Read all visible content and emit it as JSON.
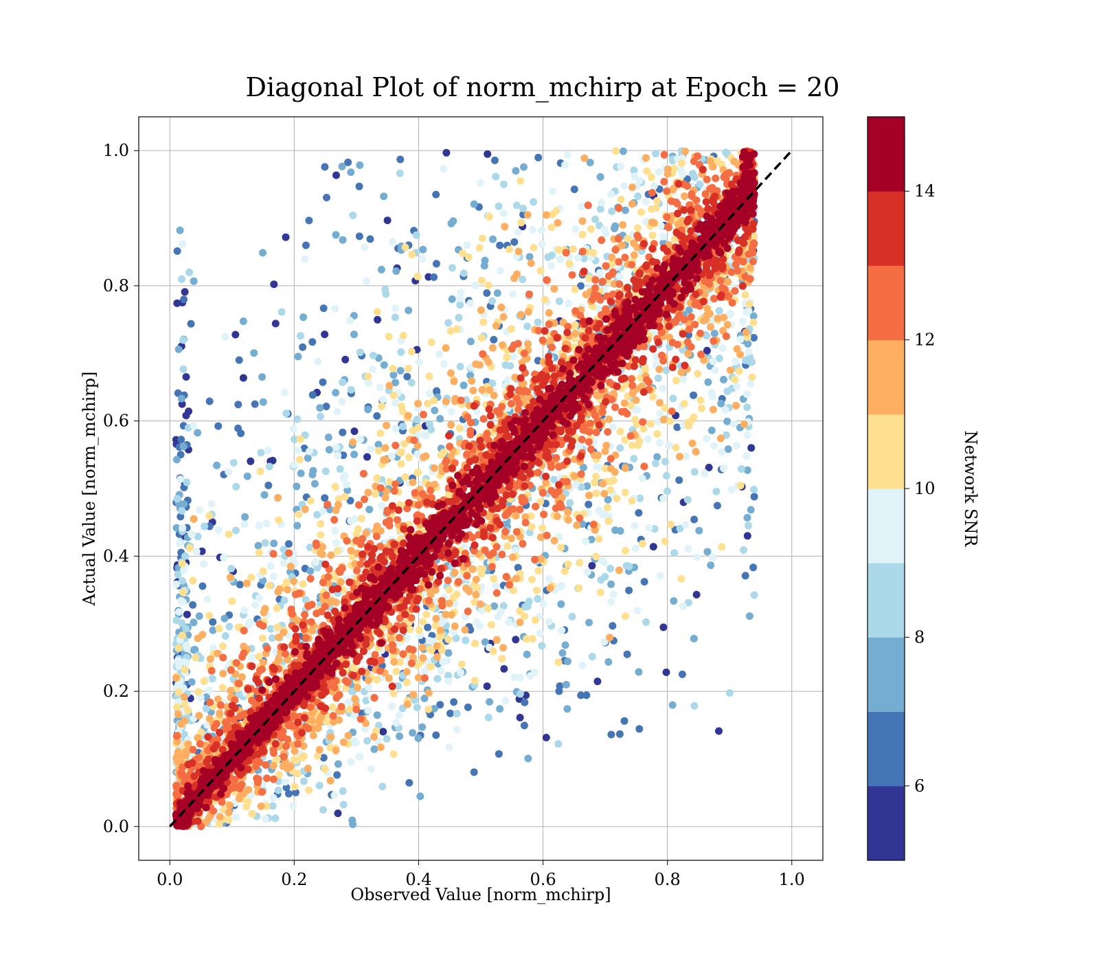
{
  "chart_data": {
    "type": "scatter",
    "title": "Diagonal Plot of norm_mchirp at Epoch = 20",
    "xlabel": "Observed Value [norm_mchirp]",
    "ylabel": "Actual Value [norm_mchirp]",
    "xlim": [
      -0.05,
      1.05
    ],
    "ylim": [
      -0.05,
      1.05
    ],
    "xticks": [
      "0.0",
      "0.2",
      "0.4",
      "0.6",
      "0.8",
      "1.0"
    ],
    "yticks": [
      "0.0",
      "0.2",
      "0.4",
      "0.6",
      "0.8",
      "1.0"
    ],
    "grid": true,
    "reference_line": {
      "style": "dashed",
      "color": "#000000",
      "x": [
        0,
        1
      ],
      "y": [
        0,
        1
      ]
    },
    "colorbar": {
      "label": "Network SNR",
      "range": [
        5,
        15
      ],
      "ticks": [
        "6",
        "8",
        "10",
        "12",
        "14"
      ],
      "tick_values": [
        6,
        8,
        10,
        12,
        14
      ],
      "bands": [
        "#313695",
        "#4575b4",
        "#74add1",
        "#abd9e9",
        "#e0f3f8",
        "#fee090",
        "#fdae61",
        "#f46d43",
        "#d73027",
        "#a50026"
      ]
    },
    "point_distribution": {
      "x_range": [
        0.01,
        0.94
      ],
      "y_range": [
        0.0,
        1.0
      ],
      "note_color_by": "snr"
    }
  }
}
